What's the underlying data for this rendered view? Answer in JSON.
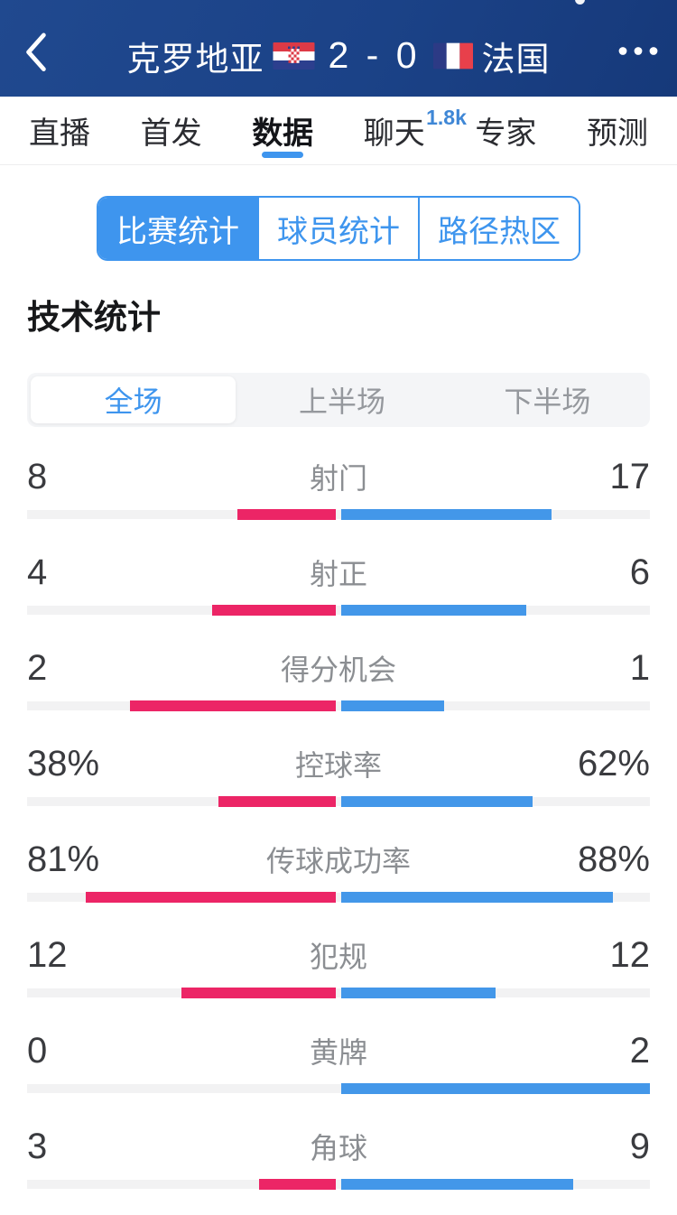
{
  "header": {
    "home_team": "克罗地亚",
    "score": "2 - 0",
    "away_team": "法国"
  },
  "main_tabs": [
    {
      "name": "live",
      "label": "直播",
      "selected": false
    },
    {
      "name": "lineup",
      "label": "首发",
      "selected": false
    },
    {
      "name": "data",
      "label": "数据",
      "selected": true
    },
    {
      "name": "chat",
      "label": "聊天",
      "selected": false,
      "badge": "1.8k"
    },
    {
      "name": "expert",
      "label": "专家",
      "selected": false
    },
    {
      "name": "predict",
      "label": "预测",
      "selected": false
    }
  ],
  "stat_type_tabs": [
    {
      "name": "match-stats",
      "label": "比赛统计",
      "selected": true
    },
    {
      "name": "player-stats",
      "label": "球员统计",
      "selected": false
    },
    {
      "name": "heat-zone",
      "label": "路径热区",
      "selected": false
    }
  ],
  "section_title": "技术统计",
  "period_tabs": [
    {
      "name": "full",
      "label": "全场",
      "selected": true
    },
    {
      "name": "first-half",
      "label": "上半场",
      "selected": false
    },
    {
      "name": "second-half",
      "label": "下半场",
      "selected": false
    }
  ],
  "chart_data": {
    "type": "bar",
    "title": "技术统计 全场 克罗地亚 2 - 0 法国",
    "left_team": "克罗地亚",
    "right_team": "法国",
    "left_color": "#ec2566",
    "right_color": "#4397e9",
    "stats": [
      {
        "label": "射门",
        "left": "8",
        "right": "17"
      },
      {
        "label": "射正",
        "left": "4",
        "right": "6"
      },
      {
        "label": "得分机会",
        "left": "2",
        "right": "1"
      },
      {
        "label": "控球率",
        "left": "38%",
        "right": "62%"
      },
      {
        "label": "传球成功率",
        "left": "81%",
        "right": "88%"
      },
      {
        "label": "犯规",
        "left": "12",
        "right": "12"
      },
      {
        "label": "黄牌",
        "left": "0",
        "right": "2"
      },
      {
        "label": "角球",
        "left": "3",
        "right": "9"
      }
    ]
  },
  "colors": {
    "header_bg": "#1b4287",
    "accent_blue": "#3e95ee",
    "badge_blue": "#3f87d6",
    "home_bar": "#ec2566",
    "away_bar": "#4397e9",
    "bar_track": "#f2f2f3"
  }
}
